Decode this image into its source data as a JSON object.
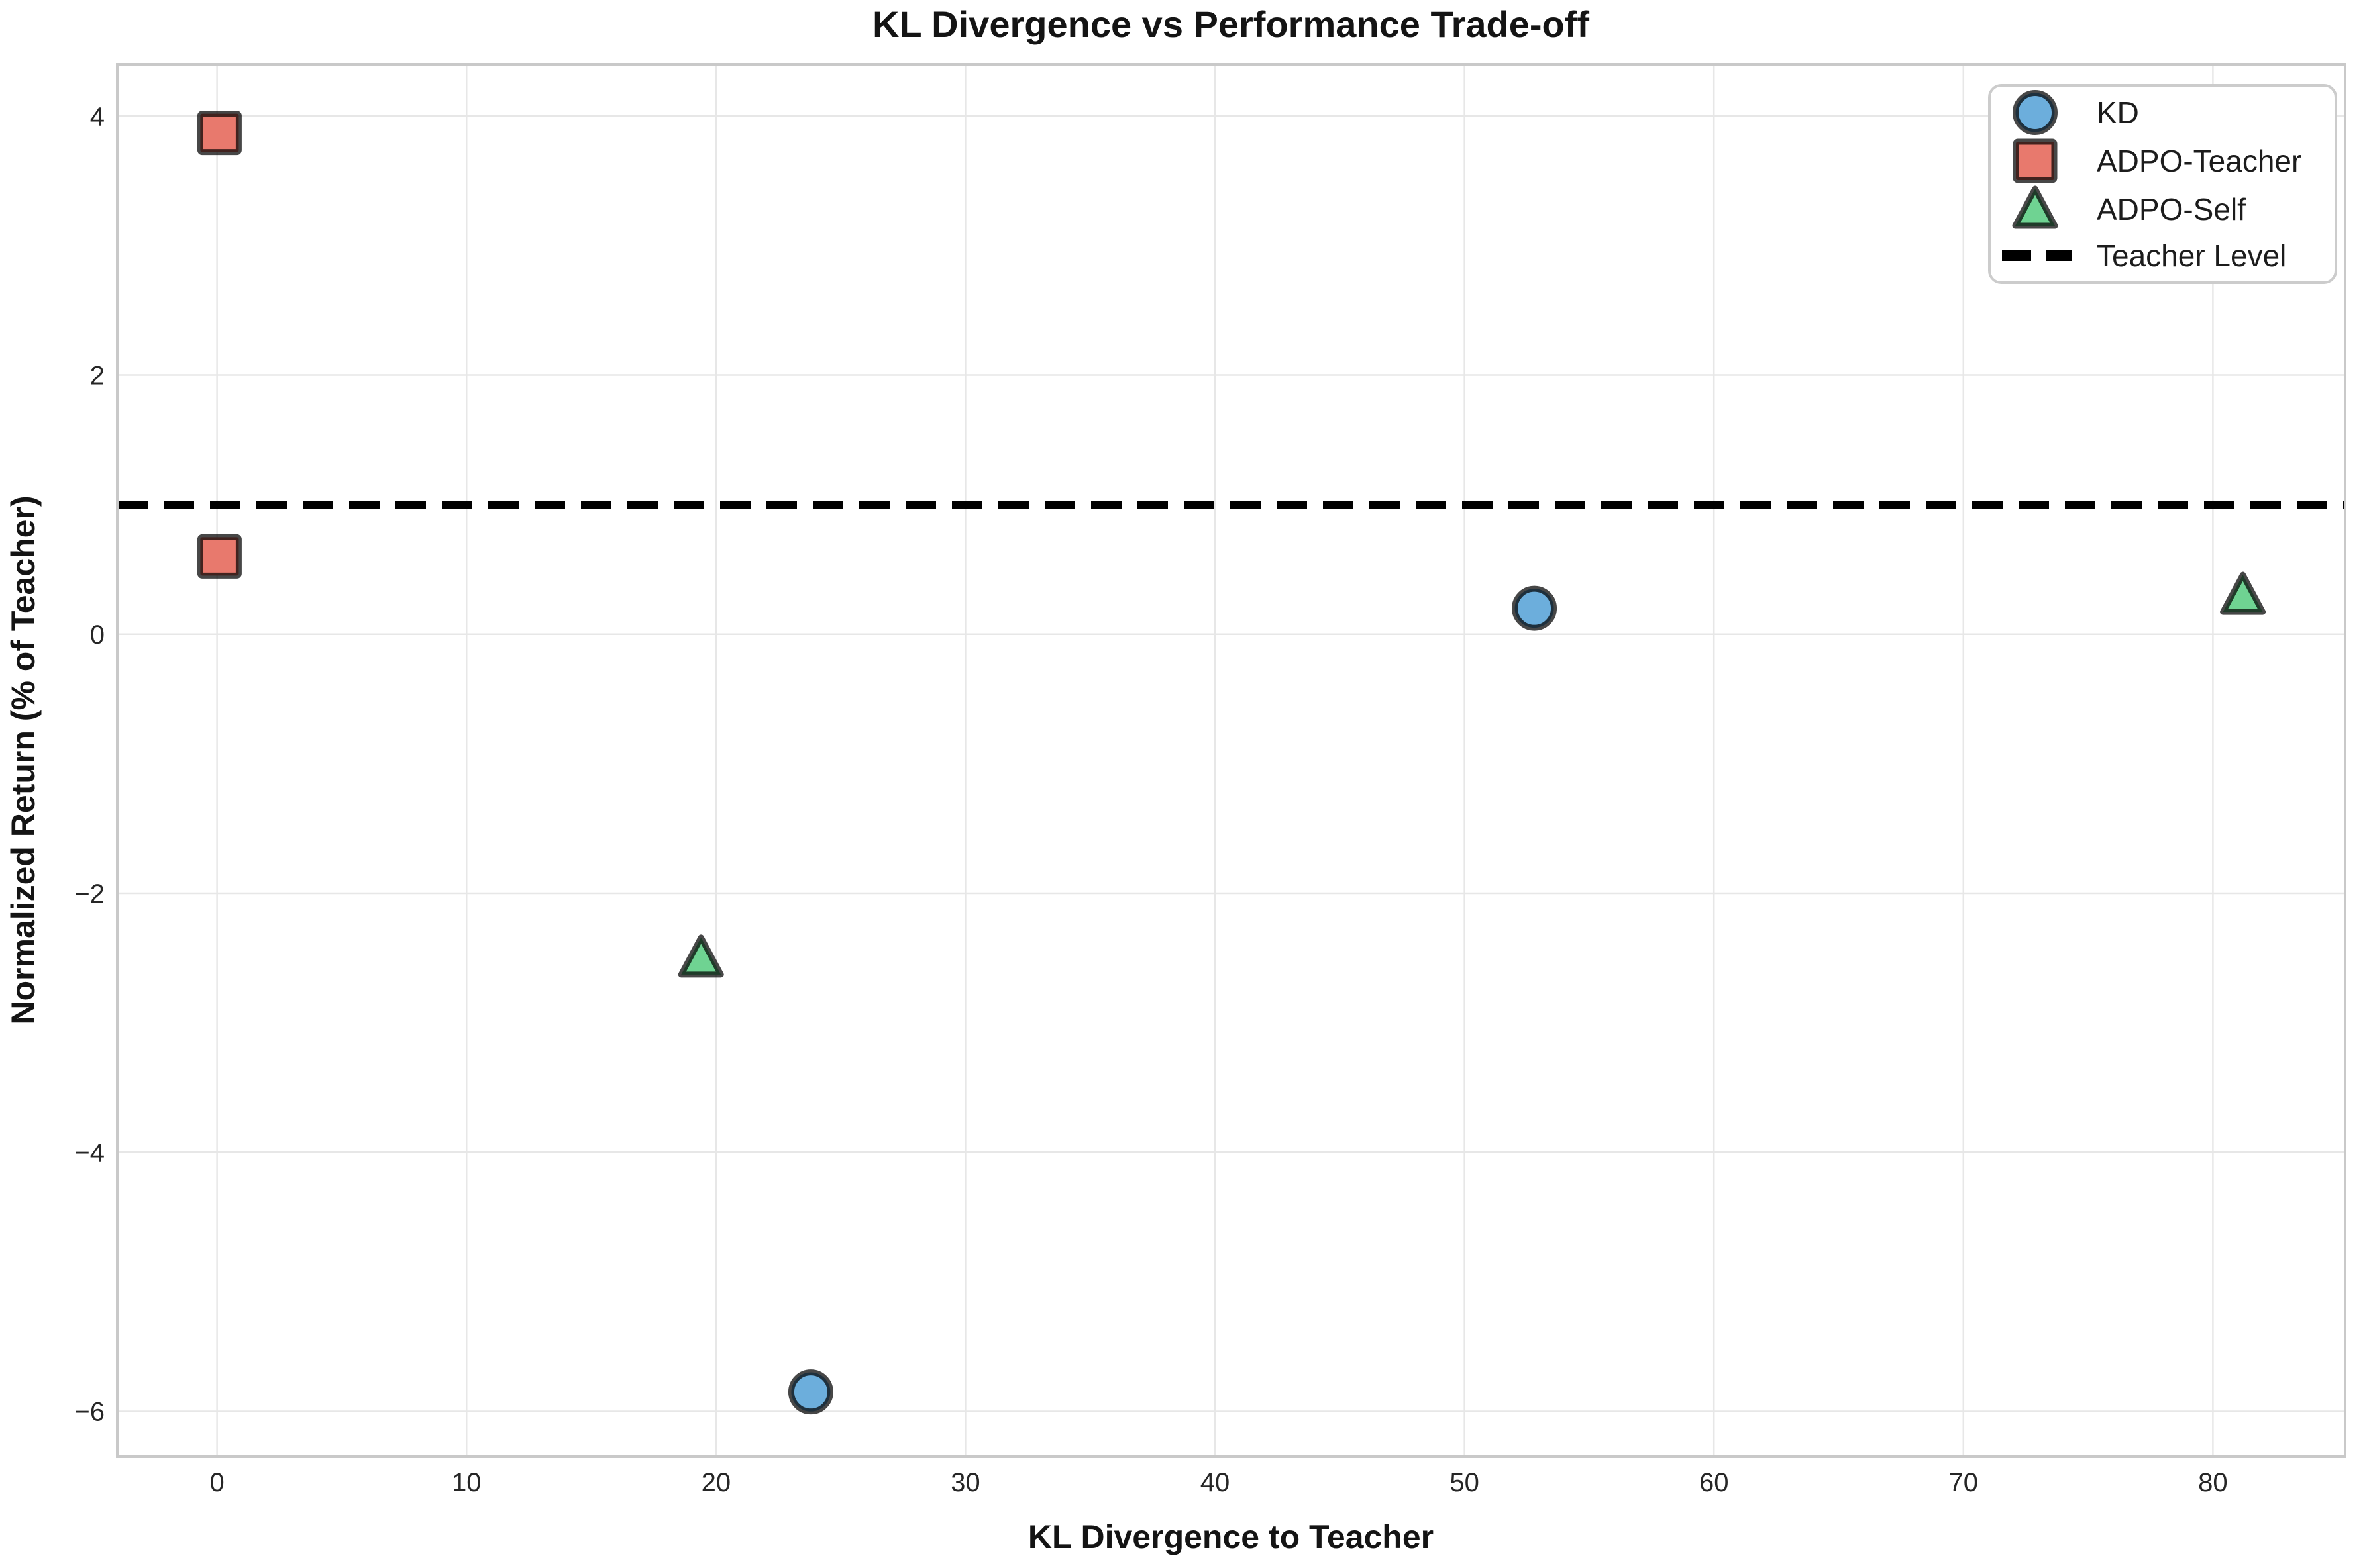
{
  "chart_data": {
    "type": "scatter",
    "title": "KL Divergence vs Performance Trade-off",
    "xlabel": "KL Divergence to Teacher",
    "ylabel": "Normalized Return (% of Teacher)",
    "xlim": [
      -4.0,
      85.3
    ],
    "ylim": [
      -6.35,
      4.4
    ],
    "xticks": [
      0,
      10,
      20,
      30,
      40,
      50,
      60,
      70,
      80
    ],
    "yticks": [
      4,
      2,
      0,
      -2,
      -4,
      -6
    ],
    "grid": true,
    "legend_position": "upper right",
    "marker_edge": "rgba(0,0,0,0.72)",
    "series": [
      {
        "name": "KD",
        "marker": "circle",
        "fill": "#6CAEDC",
        "points": [
          [
            52.8,
            0.2
          ],
          [
            23.8,
            -5.85
          ]
        ]
      },
      {
        "name": "ADPO-Teacher",
        "marker": "square",
        "fill": "#E8796D",
        "points": [
          [
            0.1,
            3.87
          ],
          [
            0.1,
            0.6
          ]
        ]
      },
      {
        "name": "ADPO-Self",
        "marker": "triangle",
        "fill": "#6FD392",
        "points": [
          [
            19.4,
            -2.5
          ],
          [
            81.2,
            0.3
          ]
        ]
      }
    ],
    "reference_line": {
      "name": "Teacher Level",
      "y": 1.0,
      "color": "#000000",
      "style": "dashed"
    },
    "colors": {
      "background": "#FFFFFF",
      "grid": "#E7E7E7",
      "spine": "#C9C9C9",
      "text": "#262626"
    }
  }
}
